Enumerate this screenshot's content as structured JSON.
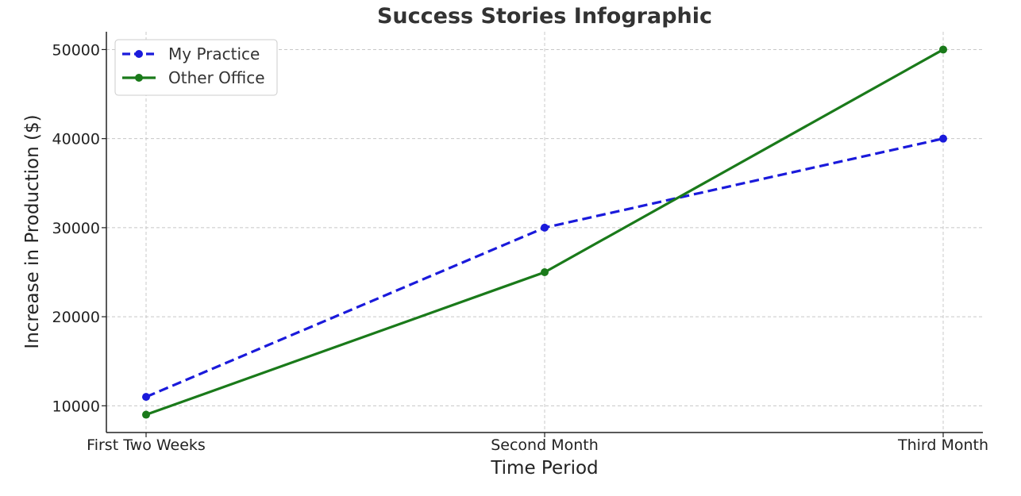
{
  "chart_data": {
    "type": "line",
    "title": "Success Stories Infographic",
    "xlabel": "Time Period",
    "ylabel": "Increase in Production ($)",
    "categories": [
      "First Two Weeks",
      "Second Month",
      "Third Month"
    ],
    "yticks": [
      10000,
      20000,
      30000,
      40000,
      50000
    ],
    "ylim": [
      7000,
      52000
    ],
    "grid": true,
    "legend_position": "top-left",
    "series": [
      {
        "name": "My Practice",
        "values": [
          11000,
          30000,
          40000
        ],
        "color": "#1a1adb",
        "style": "dashed",
        "marker": "circle"
      },
      {
        "name": "Other Office",
        "values": [
          9000,
          25000,
          50000
        ],
        "color": "#1a7a1a",
        "style": "solid",
        "marker": "circle"
      }
    ]
  }
}
